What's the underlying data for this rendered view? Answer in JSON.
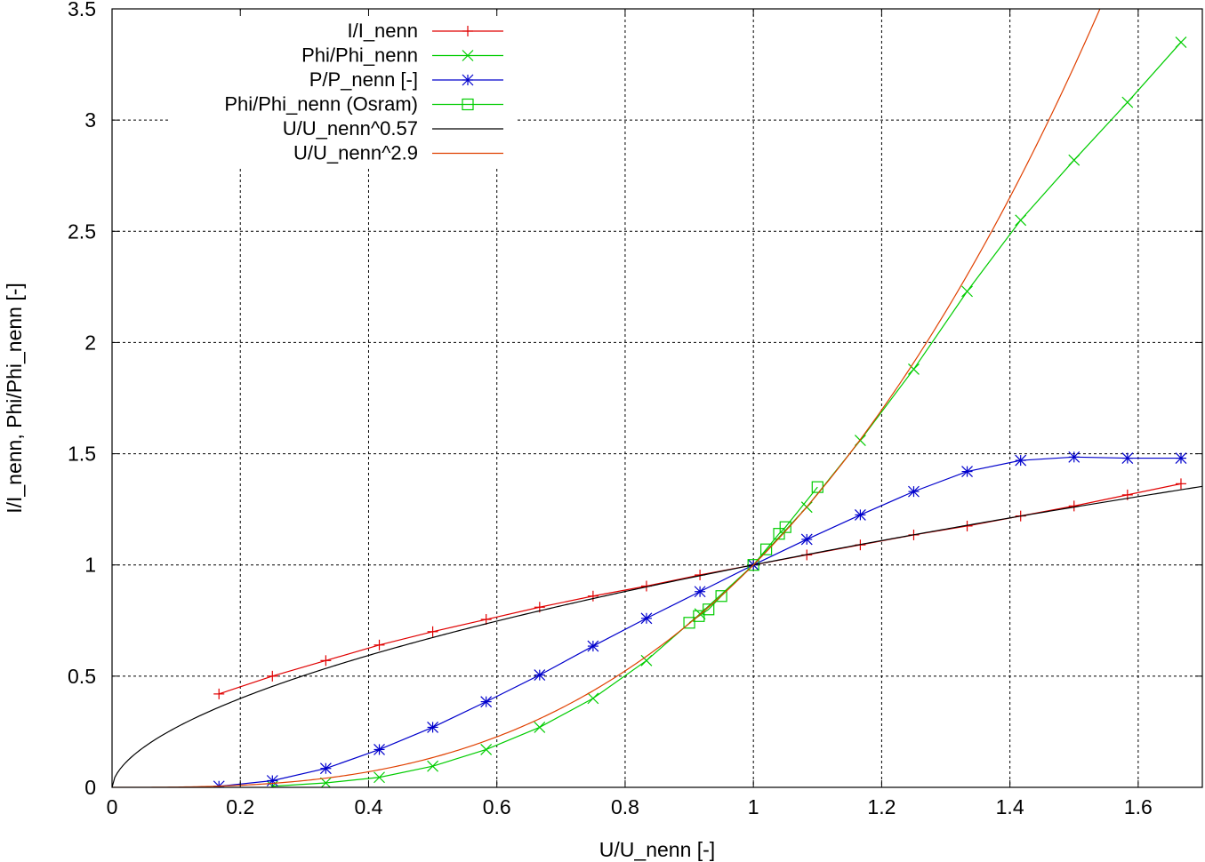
{
  "chart_data": {
    "type": "line",
    "title": "",
    "xlabel": "U/U_nenn [-]",
    "ylabel": "I/I_nenn, Phi/Phi_nenn [-]",
    "xlim": [
      0,
      1.7
    ],
    "ylim": [
      0,
      3.5
    ],
    "x_ticks": [
      "0",
      "0.2",
      "0.4",
      "0.6",
      "0.8",
      "1",
      "1.2",
      "1.4",
      "1.6"
    ],
    "y_ticks": [
      "0",
      "0.5",
      "1",
      "1.5",
      "2",
      "2.5",
      "3",
      "3.5"
    ],
    "grid": true,
    "legend_position": "top-left",
    "series": [
      {
        "name": "I/I_nenn",
        "color": "#e00000",
        "marker": "plus",
        "x": [
          0.1667,
          0.25,
          0.3333,
          0.4167,
          0.5,
          0.5833,
          0.6667,
          0.75,
          0.8333,
          0.9167,
          1.0,
          1.0833,
          1.1667,
          1.25,
          1.3333,
          1.4167,
          1.5,
          1.5833,
          1.6667
        ],
        "y": [
          0.42,
          0.5,
          0.57,
          0.64,
          0.7,
          0.755,
          0.81,
          0.86,
          0.905,
          0.955,
          1.0,
          1.045,
          1.09,
          1.135,
          1.175,
          1.22,
          1.265,
          1.315,
          1.365
        ]
      },
      {
        "name": "Phi/Phi_nenn",
        "color": "#00cc00",
        "marker": "cross",
        "x": [
          0.25,
          0.3333,
          0.4167,
          0.5,
          0.5833,
          0.6667,
          0.75,
          0.8333,
          0.9167,
          1.0,
          1.0833,
          1.1667,
          1.25,
          1.3333,
          1.4167,
          1.5,
          1.5833,
          1.6667
        ],
        "y": [
          0.005,
          0.02,
          0.045,
          0.095,
          0.17,
          0.27,
          0.4,
          0.57,
          0.78,
          1.0,
          1.26,
          1.56,
          1.88,
          2.23,
          2.55,
          2.82,
          3.08,
          3.35
        ]
      },
      {
        "name": "P/P_nenn [-]",
        "color": "#0000cc",
        "marker": "star",
        "x": [
          0.1667,
          0.25,
          0.3333,
          0.4167,
          0.5,
          0.5833,
          0.6667,
          0.75,
          0.8333,
          0.9167,
          1.0,
          1.0833,
          1.1667,
          1.25,
          1.3333,
          1.4167,
          1.5,
          1.5833,
          1.6667
        ],
        "y": [
          0.005,
          0.03,
          0.085,
          0.17,
          0.27,
          0.385,
          0.505,
          0.635,
          0.76,
          0.88,
          1.0,
          1.115,
          1.225,
          1.33,
          1.42,
          1.47,
          1.485,
          1.48,
          1.48
        ]
      },
      {
        "name": "Phi/Phi_nenn (Osram)",
        "color": "#00cc00",
        "marker": "square",
        "x": [
          0.9,
          0.915,
          0.93,
          0.95,
          1.0,
          1.02,
          1.04,
          1.05,
          1.1
        ],
        "y": [
          0.74,
          0.77,
          0.8,
          0.86,
          1.0,
          1.07,
          1.14,
          1.17,
          1.35
        ]
      },
      {
        "name": "U/U_nenn^0.57",
        "color": "#000000",
        "marker": "none",
        "function": "x^0.57"
      },
      {
        "name": "U/U_nenn^2.9",
        "color": "#e04000",
        "marker": "none",
        "function": "x^2.9"
      }
    ]
  }
}
